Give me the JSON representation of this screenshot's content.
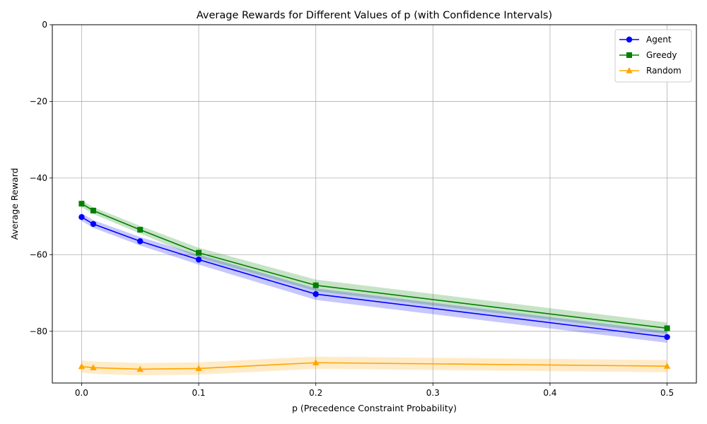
{
  "chart_data": {
    "type": "line",
    "title": "Average Rewards for Different Values of p (with Confidence Intervals)",
    "xlabel": "p (Precedence Constraint Probability)",
    "ylabel": "Average Reward",
    "xlim": [
      -0.025,
      0.525
    ],
    "ylim": [
      -93.5,
      0
    ],
    "xticks": [
      0.0,
      0.1,
      0.2,
      0.3,
      0.4,
      0.5
    ],
    "xtick_labels": [
      "0.0",
      "0.1",
      "0.2",
      "0.3",
      "0.4",
      "0.5"
    ],
    "yticks": [
      -80,
      -60,
      -40,
      -20,
      0
    ],
    "ytick_labels": [
      "−80",
      "−60",
      "−40",
      "−20",
      "0"
    ],
    "grid": true,
    "legend_position": "top-right",
    "x": [
      0.0,
      0.01,
      0.05,
      0.1,
      0.2,
      0.5
    ],
    "series": [
      {
        "name": "Agent",
        "color": "#0000ff",
        "marker": "circle",
        "values": [
          -50.2,
          -52.0,
          -56.5,
          -61.3,
          -70.3,
          -81.5
        ],
        "ci_low": [
          -51.2,
          -53.0,
          -57.6,
          -62.6,
          -71.8,
          -83.0
        ],
        "ci_high": [
          -49.2,
          -51.0,
          -55.4,
          -60.0,
          -68.8,
          -80.0
        ]
      },
      {
        "name": "Greedy",
        "color": "#008000",
        "marker": "square",
        "values": [
          -46.7,
          -48.5,
          -53.5,
          -59.5,
          -68.0,
          -79.2
        ],
        "ci_low": [
          -47.6,
          -49.4,
          -54.5,
          -60.8,
          -69.5,
          -80.7
        ],
        "ci_high": [
          -45.8,
          -47.6,
          -52.5,
          -58.2,
          -66.5,
          -77.7
        ]
      },
      {
        "name": "Random",
        "color": "#ffa500",
        "marker": "triangle",
        "values": [
          -89.2,
          -89.5,
          -89.9,
          -89.7,
          -88.2,
          -89.1
        ],
        "ci_low": [
          -90.8,
          -91.1,
          -91.5,
          -91.3,
          -89.8,
          -90.7
        ],
        "ci_high": [
          -87.6,
          -87.9,
          -88.3,
          -88.1,
          -86.6,
          -87.5
        ]
      }
    ]
  }
}
